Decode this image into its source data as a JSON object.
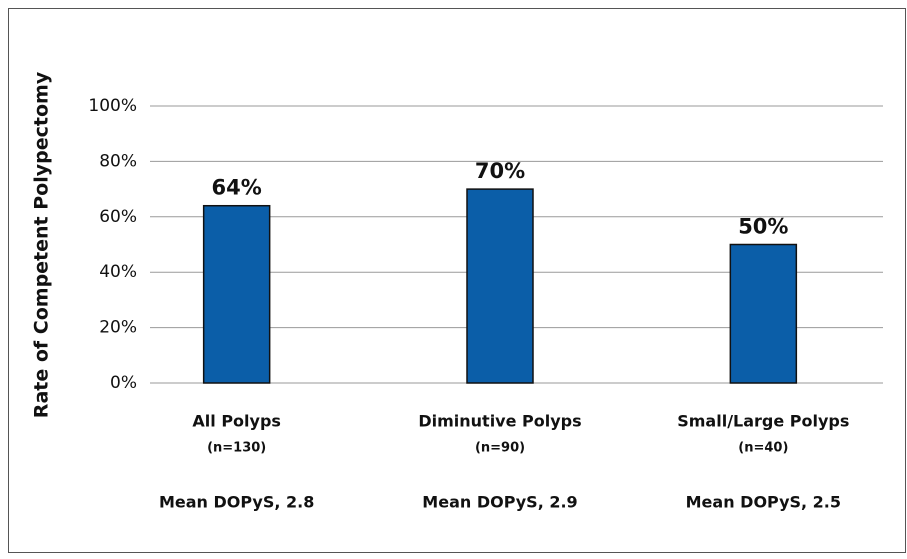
{
  "chart_data": {
    "type": "bar",
    "y_label": "Rate of Competent Polypectomy",
    "categories": [
      "All Polyps",
      "Diminutive Polyps",
      "Small/Large Polyps"
    ],
    "category_counts": [
      "(n=130)",
      "(n=90)",
      "(n=40)"
    ],
    "category_notes": [
      "Mean DOPyS, 2.8",
      "Mean DOPyS, 2.9",
      "Mean DOPyS, 2.5"
    ],
    "values": [
      64,
      70,
      50
    ],
    "value_labels": [
      "64%",
      "70%",
      "50%"
    ],
    "color": "#0b5ea8",
    "ylim": [
      0,
      100
    ],
    "yticks": [
      {
        "value": 0,
        "label": "0%"
      },
      {
        "value": 20,
        "label": "20%"
      },
      {
        "value": 40,
        "label": "40%"
      },
      {
        "value": 60,
        "label": "60%"
      },
      {
        "value": 80,
        "label": "80%"
      },
      {
        "value": 100,
        "label": "100%"
      }
    ],
    "grid": true
  }
}
